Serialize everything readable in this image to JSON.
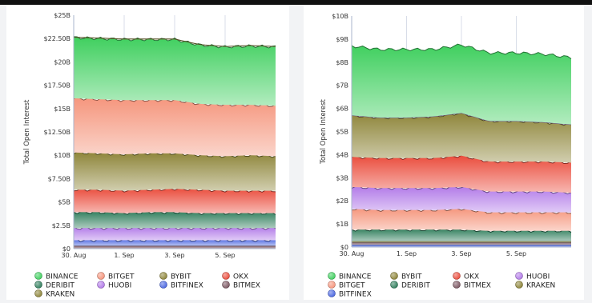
{
  "chart_data": [
    {
      "type": "area",
      "stacked": true,
      "ylabel": "Total Open Interest",
      "yticks": [
        "$0",
        "$2.5B",
        "$5B",
        "$7.50B",
        "$10B",
        "$12.50B",
        "$15B",
        "$17.50B",
        "$20B",
        "$22.50B",
        "$25B"
      ],
      "ylim": [
        0,
        25
      ],
      "x_ticks": [
        "30. Aug",
        "1. Sep",
        "3. Sep",
        "5. Sep"
      ],
      "x": [
        "2023-08-30",
        "2023-08-31",
        "2023-09-01",
        "2023-09-02",
        "2023-09-03",
        "2023-09-04",
        "2023-09-05",
        "2023-09-06",
        "2023-09-07"
      ],
      "grid": "vertical",
      "legend_position": "bottom",
      "series": [
        {
          "name": "BITMEX",
          "color": "#7a5560",
          "values": [
            0.3,
            0.3,
            0.3,
            0.3,
            0.3,
            0.3,
            0.3,
            0.3,
            0.3
          ]
        },
        {
          "name": "BITFINEX",
          "color": "#4a66e0",
          "values": [
            0.6,
            0.6,
            0.6,
            0.6,
            0.6,
            0.6,
            0.6,
            0.6,
            0.6
          ]
        },
        {
          "name": "HUOBI",
          "color": "#b27ae8",
          "values": [
            1.3,
            1.3,
            1.3,
            1.3,
            1.3,
            1.3,
            1.3,
            1.3,
            1.3
          ]
        },
        {
          "name": "DERIBIT",
          "color": "#2e7d5b",
          "values": [
            1.7,
            1.7,
            1.6,
            1.7,
            1.7,
            1.6,
            1.6,
            1.6,
            1.6
          ]
        },
        {
          "name": "OKX",
          "color": "#ea4c3c",
          "values": [
            2.4,
            2.4,
            2.4,
            2.4,
            2.5,
            2.5,
            2.4,
            2.4,
            2.4
          ]
        },
        {
          "name": "BYBIT",
          "color": "#8d8438",
          "values": [
            4.0,
            3.9,
            3.9,
            3.9,
            3.8,
            3.7,
            3.7,
            3.8,
            3.7
          ]
        },
        {
          "name": "BITGET",
          "color": "#f5957c",
          "values": [
            5.8,
            5.8,
            5.8,
            5.7,
            5.7,
            5.5,
            5.5,
            5.4,
            5.4
          ]
        },
        {
          "name": "BINANCE",
          "color": "#3fcf5e",
          "values": [
            6.5,
            6.5,
            6.5,
            6.5,
            6.5,
            6.3,
            6.2,
            6.3,
            6.3
          ]
        },
        {
          "name": "KRAKEN",
          "color": "#8d8438",
          "values": [
            0.05,
            0.05,
            0.05,
            0.05,
            0.05,
            0.05,
            0.05,
            0.05,
            0.05
          ]
        }
      ],
      "legend": [
        {
          "name": "BINANCE",
          "color": "#3fcf5e"
        },
        {
          "name": "BITGET",
          "color": "#f5957c"
        },
        {
          "name": "BYBIT",
          "color": "#8d8438"
        },
        {
          "name": "OKX",
          "color": "#ea4c3c"
        },
        {
          "name": "DERIBIT",
          "color": "#2e7d5b"
        },
        {
          "name": "HUOBI",
          "color": "#b27ae8"
        },
        {
          "name": "BITFINEX",
          "color": "#4a66e0"
        },
        {
          "name": "BITMEX",
          "color": "#7a5560"
        },
        {
          "name": "KRAKEN",
          "color": "#8d8438"
        }
      ]
    },
    {
      "type": "area",
      "stacked": true,
      "ylabel": "Total Open Interest",
      "yticks": [
        "$0",
        "$1B",
        "$2B",
        "$3B",
        "$4B",
        "$5B",
        "$6B",
        "$7B",
        "$8B",
        "$9B",
        "$10B"
      ],
      "ylim": [
        0,
        10
      ],
      "x_ticks": [
        "30. Aug",
        "1. Sep",
        "3. Sep",
        "5. Sep"
      ],
      "x": [
        "2023-08-30",
        "2023-08-31",
        "2023-09-01",
        "2023-09-02",
        "2023-09-03",
        "2023-09-04",
        "2023-09-05",
        "2023-09-06",
        "2023-09-07"
      ],
      "grid": "vertical",
      "legend_position": "bottom",
      "series": [
        {
          "name": "BITFINEX",
          "color": "#4a66e0",
          "values": [
            0.1,
            0.1,
            0.1,
            0.1,
            0.1,
            0.1,
            0.1,
            0.1,
            0.1
          ]
        },
        {
          "name": "BITMEX",
          "color": "#7a5560",
          "values": [
            0.1,
            0.1,
            0.1,
            0.1,
            0.1,
            0.1,
            0.1,
            0.1,
            0.1
          ]
        },
        {
          "name": "KRAKEN",
          "color": "#8d8438",
          "values": [
            0.05,
            0.05,
            0.05,
            0.05,
            0.05,
            0.05,
            0.05,
            0.05,
            0.05
          ]
        },
        {
          "name": "DERIBIT",
          "color": "#2e7d5b",
          "values": [
            0.5,
            0.5,
            0.5,
            0.5,
            0.5,
            0.45,
            0.45,
            0.45,
            0.45
          ]
        },
        {
          "name": "BITGET",
          "color": "#f5957c",
          "values": [
            0.9,
            0.85,
            0.85,
            0.85,
            0.9,
            0.8,
            0.8,
            0.8,
            0.8
          ]
        },
        {
          "name": "HUOBI",
          "color": "#b27ae8",
          "values": [
            0.95,
            0.95,
            0.95,
            0.95,
            0.95,
            0.9,
            0.9,
            0.9,
            0.85
          ]
        },
        {
          "name": "OKX",
          "color": "#ea4c3c",
          "values": [
            1.3,
            1.3,
            1.3,
            1.3,
            1.35,
            1.3,
            1.3,
            1.3,
            1.3
          ]
        },
        {
          "name": "BYBIT",
          "color": "#8d8438",
          "values": [
            1.8,
            1.75,
            1.75,
            1.8,
            1.85,
            1.75,
            1.75,
            1.7,
            1.65
          ]
        },
        {
          "name": "HUOBI",
          "color": "#b27ae8",
          "values": [
            0,
            0,
            0,
            0,
            0,
            0,
            0,
            0,
            0
          ]
        },
        {
          "name": "BINANCE",
          "color": "#3fcf5e",
          "values": [
            3.0,
            2.95,
            2.95,
            2.9,
            2.95,
            2.95,
            2.95,
            2.95,
            2.9
          ]
        }
      ],
      "legend": [
        {
          "name": "BINANCE",
          "color": "#3fcf5e"
        },
        {
          "name": "BYBIT",
          "color": "#8d8438"
        },
        {
          "name": "OKX",
          "color": "#ea4c3c"
        },
        {
          "name": "HUOBI",
          "color": "#b27ae8"
        },
        {
          "name": "BITGET",
          "color": "#f5957c"
        },
        {
          "name": "DERIBIT",
          "color": "#2e7d5b"
        },
        {
          "name": "BITMEX",
          "color": "#7a5560"
        },
        {
          "name": "KRAKEN",
          "color": "#8d8438"
        },
        {
          "name": "BITFINEX",
          "color": "#4a66e0"
        }
      ]
    }
  ]
}
